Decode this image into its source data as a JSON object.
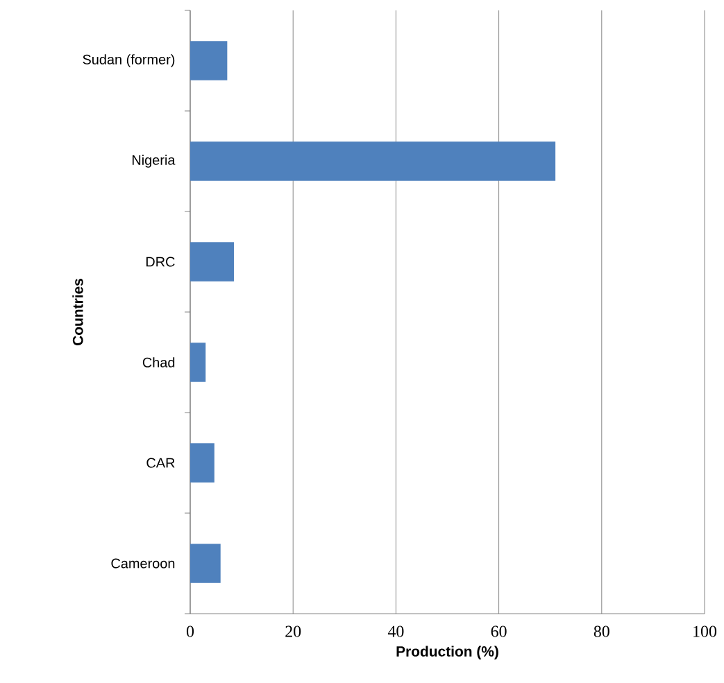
{
  "chart_data": {
    "type": "bar",
    "orientation": "horizontal",
    "xlabel": "Production (%)",
    "ylabel": "Countries",
    "categories": [
      "Sudan (former)",
      "Nigeria",
      "DRC",
      "Chad",
      "CAR",
      "Cameroon"
    ],
    "values": [
      7.2,
      71.0,
      8.5,
      3.0,
      4.7,
      5.9
    ],
    "color": "#4f81bd",
    "xlim": [
      0,
      100
    ],
    "xticks": [
      0,
      20,
      40,
      60,
      80,
      100
    ],
    "grid": "x"
  }
}
